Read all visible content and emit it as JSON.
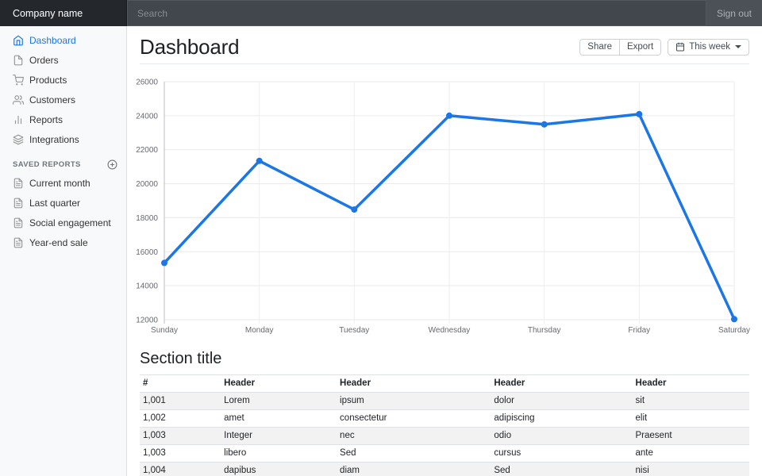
{
  "colors": {
    "accent": "#1b76e8",
    "navbar_bar_bg": "#4b5157",
    "navbar_brand_bg": "#24282c",
    "navbar_search_bg": "#42474d",
    "sidebar_bg": "#f8f9fa",
    "icon_gray": "#999999",
    "table_border": "#dee2e6",
    "stripe": "#f2f2f2"
  },
  "navbar": {
    "brand": "Company name",
    "search_placeholder": "Search",
    "sign_out_label": "Sign out"
  },
  "sidebar": {
    "items": [
      {
        "label": "Dashboard",
        "icon": "home-icon",
        "active": true
      },
      {
        "label": "Orders",
        "icon": "file-icon",
        "active": false
      },
      {
        "label": "Products",
        "icon": "shopping-cart-icon",
        "active": false
      },
      {
        "label": "Customers",
        "icon": "users-icon",
        "active": false
      },
      {
        "label": "Reports",
        "icon": "bar-chart-icon",
        "active": false
      },
      {
        "label": "Integrations",
        "icon": "layers-icon",
        "active": false
      }
    ],
    "saved_reports_heading": "Saved reports",
    "add_report_icon": "plus-circle-icon",
    "saved_reports": [
      {
        "label": "Current month",
        "icon": "file-text-icon"
      },
      {
        "label": "Last quarter",
        "icon": "file-text-icon"
      },
      {
        "label": "Social engagement",
        "icon": "file-text-icon"
      },
      {
        "label": "Year-end sale",
        "icon": "file-text-icon"
      }
    ]
  },
  "page": {
    "title": "Dashboard",
    "toolbar": {
      "share_label": "Share",
      "export_label": "Export",
      "period_label": "This week",
      "period_icon": "calendar-icon"
    }
  },
  "chart_data": {
    "type": "line",
    "x_labels": [
      "Sunday",
      "Monday",
      "Tuesday",
      "Wednesday",
      "Thursday",
      "Friday",
      "Saturday"
    ],
    "series": [
      {
        "values": [
          15339,
          21345,
          18483,
          24003,
          23489,
          24092,
          12034
        ]
      }
    ],
    "ylim": [
      12000,
      26000
    ],
    "ytick_step": 2000,
    "grid": true,
    "legend": "none",
    "line_color": "#1b76e8",
    "line_width": 3.5,
    "point_radius": 4
  },
  "section": {
    "title": "Section title"
  },
  "table": {
    "headers": [
      "#",
      "Header",
      "Header",
      "Header",
      "Header"
    ],
    "col_widths": [
      "13.3%",
      "19%",
      "25.3%",
      "23.2%",
      "19.2%"
    ],
    "rows": [
      [
        "1,001",
        "Lorem",
        "ipsum",
        "dolor",
        "sit"
      ],
      [
        "1,002",
        "amet",
        "consectetur",
        "adipiscing",
        "elit"
      ],
      [
        "1,003",
        "Integer",
        "nec",
        "odio",
        "Praesent"
      ],
      [
        "1,003",
        "libero",
        "Sed",
        "cursus",
        "ante"
      ],
      [
        "1,004",
        "dapibus",
        "diam",
        "Sed",
        "nisi"
      ]
    ]
  }
}
